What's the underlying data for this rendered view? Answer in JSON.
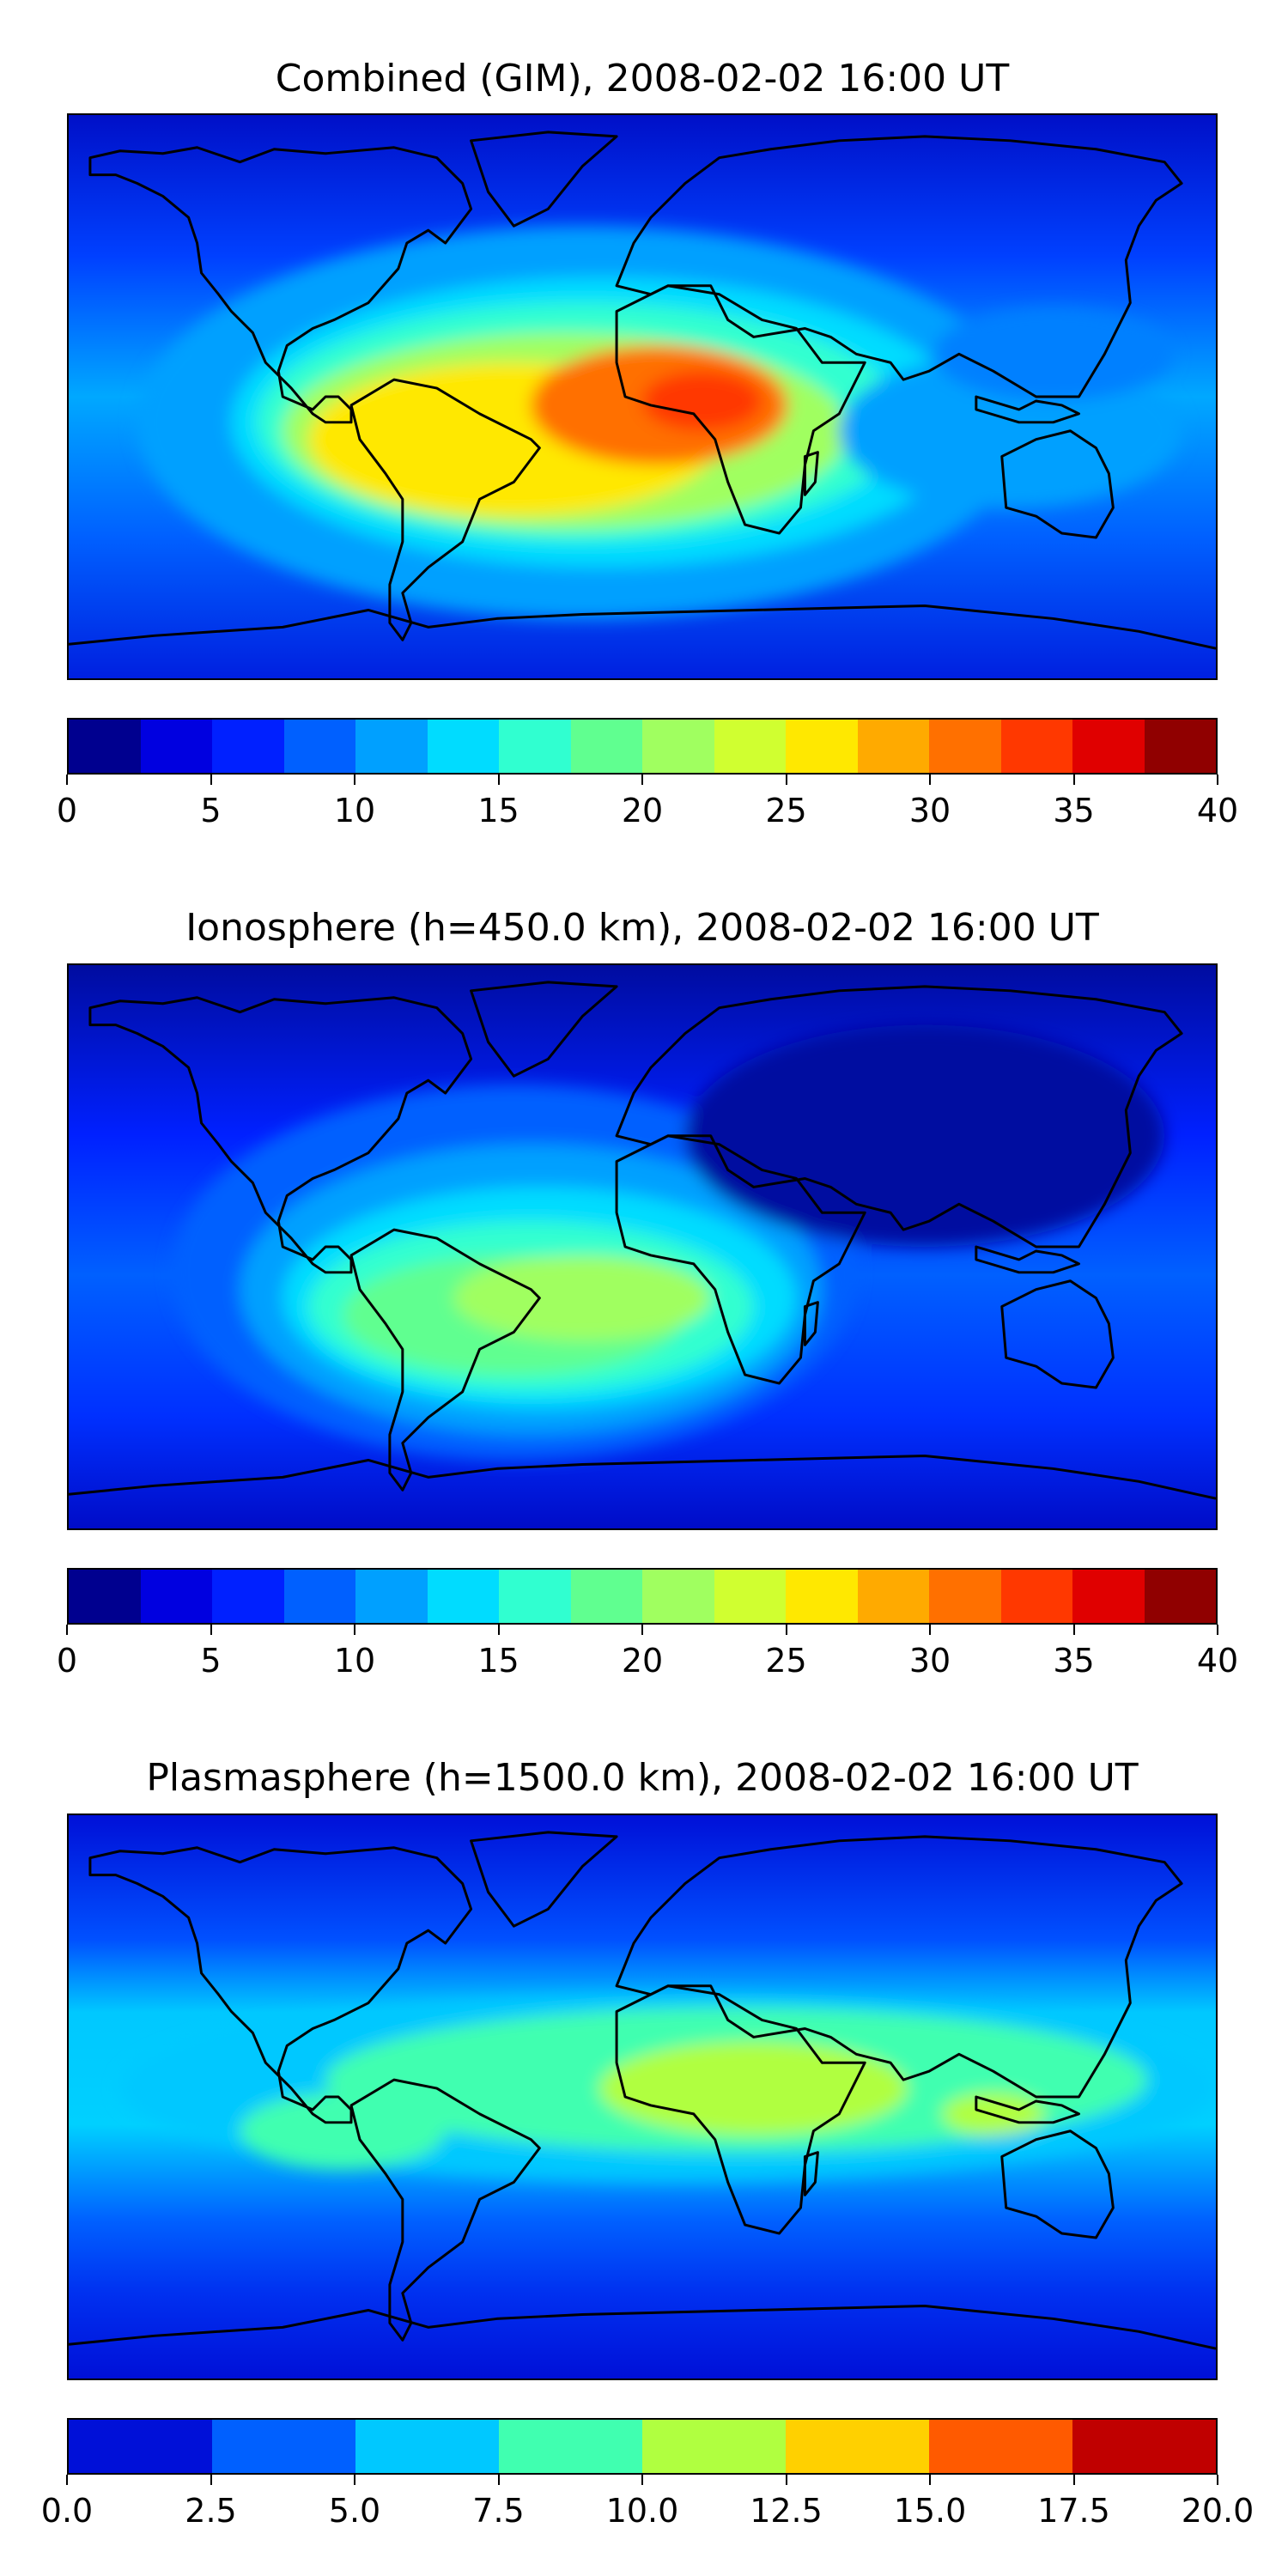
{
  "panels": [
    {
      "title": "Combined (GIM), 2008-02-02 16:00 UT",
      "colorbar": {
        "ticks": [
          "0",
          "5",
          "10",
          "15",
          "20",
          "25",
          "30",
          "35",
          "40"
        ],
        "colors": [
          "#00008f",
          "#0000e0",
          "#0020ff",
          "#0060ff",
          "#00a0ff",
          "#00dcff",
          "#30ffd0",
          "#60ff90",
          "#a0ff60",
          "#d0ff30",
          "#ffe800",
          "#ffaa00",
          "#ff7000",
          "#ff3800",
          "#e00000",
          "#900000"
        ]
      }
    },
    {
      "title": "Ionosphere  (h=450.0 km), 2008-02-02 16:00 UT",
      "colorbar": {
        "ticks": [
          "0",
          "5",
          "10",
          "15",
          "20",
          "25",
          "30",
          "35",
          "40"
        ],
        "colors": [
          "#00008f",
          "#0000e0",
          "#0020ff",
          "#0060ff",
          "#00a0ff",
          "#00dcff",
          "#30ffd0",
          "#60ff90",
          "#a0ff60",
          "#d0ff30",
          "#ffe800",
          "#ffaa00",
          "#ff7000",
          "#ff3800",
          "#e00000",
          "#900000"
        ]
      }
    },
    {
      "title": "Plasmasphere (h=1500.0 km), 2008-02-02 16:00 UT",
      "colorbar": {
        "ticks": [
          "0.0",
          "2.5",
          "5.0",
          "7.5",
          "10.0",
          "12.5",
          "15.0",
          "17.5",
          "20.0"
        ],
        "colors": [
          "#0010d8",
          "#0060ff",
          "#00c8ff",
          "#40ffb0",
          "#b0ff40",
          "#ffd000",
          "#ff5a00",
          "#c00000"
        ]
      }
    }
  ]
}
